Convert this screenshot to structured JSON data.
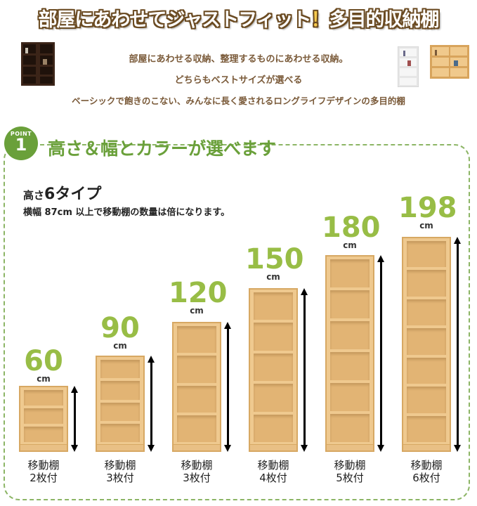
{
  "header": {
    "title_main": "部屋にあわせてジャストフィット",
    "title_mark": "！",
    "title_tail": "多目的収納棚",
    "line1": "部屋にあわせる収納、整理するものにあわせる収納。",
    "line2": "どちらもベストサイズが選べる",
    "line3": "ベーシックで飽きのこない、みんなに長く愛されるロングライフデザインの多目的棚"
  },
  "point": {
    "badge_word": "POINT",
    "badge_number": "1",
    "heading": "高さ＆幅とカラーが選べます",
    "height_prefix": "高さ",
    "height_types": "6タイプ",
    "note": "横幅 87cm 以上で移動棚の数量は倍になります。"
  },
  "units": [
    {
      "height": "60",
      "unit": "cm",
      "caption_line1": "移動棚",
      "caption_line2": "2枚付",
      "compartments": 3
    },
    {
      "height": "90",
      "unit": "cm",
      "caption_line1": "移動棚",
      "caption_line2": "3枚付",
      "compartments": 4
    },
    {
      "height": "120",
      "unit": "cm",
      "caption_line1": "移動棚",
      "caption_line2": "3枚付",
      "compartments": 4
    },
    {
      "height": "150",
      "unit": "cm",
      "caption_line1": "移動棚",
      "caption_line2": "4枚付",
      "compartments": 5
    },
    {
      "height": "180",
      "unit": "cm",
      "caption_line1": "移動棚",
      "caption_line2": "5枚付",
      "compartments": 6
    },
    {
      "height": "198",
      "unit": "cm",
      "caption_line1": "移動棚",
      "caption_line2": "6枚付",
      "compartments": 7
    }
  ],
  "colors": {
    "accent_green": "#6aa03a",
    "number_green": "#98bd46",
    "title_brown": "#6b4b22",
    "wood": "#efc98f",
    "dark_wood": "#3b2418"
  }
}
